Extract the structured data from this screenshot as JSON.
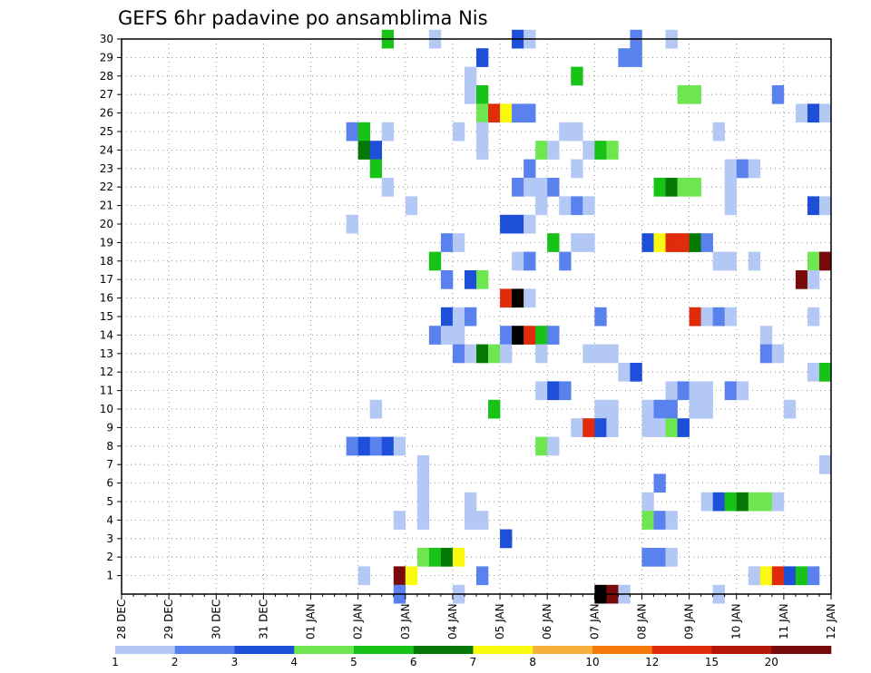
{
  "chart_data": {
    "type": "heatmap",
    "title": "GEFS 6hr padavine po ansamblima Nis",
    "xlabel": "",
    "ylabel": "",
    "x_tick_labels": [
      "28 DEC",
      "29 DEC",
      "30 DEC",
      "31 DEC",
      "01 JAN",
      "02 JAN",
      "03 JAN",
      "04 JAN",
      "05 JAN",
      "06 JAN",
      "07 JAN",
      "08 JAN",
      "09 JAN",
      "10 JAN",
      "11 JAN",
      "12 JAN"
    ],
    "y_tick_labels": [
      "1",
      "2",
      "3",
      "4",
      "5",
      "6",
      "7",
      "8",
      "9",
      "10",
      "11",
      "12",
      "13",
      "14",
      "15",
      "16",
      "17",
      "18",
      "19",
      "20",
      "21",
      "22",
      "23",
      "24",
      "25",
      "26",
      "27",
      "28",
      "29",
      "30"
    ],
    "x_unit": "6-hour step from 28 DEC 00Z",
    "y_unit": "ensemble member",
    "xlim": [
      0,
      60
    ],
    "ylim": [
      0,
      30
    ],
    "grid": true,
    "legend_placement": "bottom",
    "legend": {
      "labels": [
        "1",
        "2",
        "3",
        "4",
        "5",
        "6",
        "7",
        "8",
        "10",
        "12",
        "15",
        "20"
      ],
      "colors": [
        "#b4c8f5",
        "#5a82ee",
        "#1d4fd9",
        "#6ee650",
        "#18c318",
        "#067806",
        "#fafa10",
        "#f8b03c",
        "#f57a0a",
        "#e02c0a",
        "#b41605",
        "#780a0a"
      ]
    },
    "cells": [
      [
        22.5,
        30,
        5
      ],
      [
        26.5,
        30,
        1
      ],
      [
        33.5,
        30,
        3
      ],
      [
        34.5,
        30,
        1
      ],
      [
        43.5,
        30,
        2
      ],
      [
        46.5,
        30,
        1
      ],
      [
        30.5,
        29,
        3
      ],
      [
        42.5,
        29,
        2
      ],
      [
        43.5,
        29,
        2
      ],
      [
        29.5,
        28,
        1
      ],
      [
        38.5,
        28,
        5
      ],
      [
        29.5,
        27,
        1
      ],
      [
        30.5,
        27,
        5
      ],
      [
        47.5,
        27,
        4
      ],
      [
        48.5,
        27,
        4
      ],
      [
        55.5,
        27,
        2
      ],
      [
        30.5,
        26,
        4
      ],
      [
        31.5,
        26,
        10
      ],
      [
        32.5,
        26,
        7
      ],
      [
        33.5,
        26,
        2
      ],
      [
        34.5,
        26,
        2
      ],
      [
        57.5,
        26,
        1
      ],
      [
        58.5,
        26,
        3
      ],
      [
        59.5,
        26,
        1
      ],
      [
        19.5,
        25,
        2
      ],
      [
        20.5,
        25,
        5
      ],
      [
        22.5,
        25,
        1
      ],
      [
        28.5,
        25,
        1
      ],
      [
        30.5,
        25,
        1
      ],
      [
        37.5,
        25,
        1
      ],
      [
        38.5,
        25,
        1
      ],
      [
        50.5,
        25,
        1
      ],
      [
        20.5,
        24,
        6
      ],
      [
        21.5,
        24,
        3
      ],
      [
        30.5,
        24,
        1
      ],
      [
        35.5,
        24,
        4
      ],
      [
        36.5,
        24,
        1
      ],
      [
        39.5,
        24,
        1
      ],
      [
        40.5,
        24,
        5
      ],
      [
        41.5,
        24,
        4
      ],
      [
        21.5,
        23,
        5
      ],
      [
        34.5,
        23,
        2
      ],
      [
        38.5,
        23,
        1
      ],
      [
        51.5,
        23,
        1
      ],
      [
        52.5,
        23,
        2
      ],
      [
        53.5,
        23,
        1
      ],
      [
        22.5,
        22,
        1
      ],
      [
        33.5,
        22,
        2
      ],
      [
        34.5,
        22,
        1
      ],
      [
        35.5,
        22,
        1
      ],
      [
        36.5,
        22,
        2
      ],
      [
        45.5,
        22,
        5
      ],
      [
        46.5,
        22,
        6
      ],
      [
        47.5,
        22,
        4
      ],
      [
        48.5,
        22,
        4
      ],
      [
        51.5,
        22,
        1
      ],
      [
        24.5,
        21,
        1
      ],
      [
        35.5,
        21,
        1
      ],
      [
        37.5,
        21,
        1
      ],
      [
        38.5,
        21,
        2
      ],
      [
        39.5,
        21,
        1
      ],
      [
        51.5,
        21,
        1
      ],
      [
        58.5,
        21,
        3
      ],
      [
        59.5,
        21,
        1
      ],
      [
        19.5,
        20,
        1
      ],
      [
        32.5,
        20,
        3
      ],
      [
        33.5,
        20,
        3
      ],
      [
        34.5,
        20,
        1
      ],
      [
        27.5,
        19,
        2
      ],
      [
        28.5,
        19,
        1
      ],
      [
        36.5,
        19,
        5
      ],
      [
        38.5,
        19,
        1
      ],
      [
        39.5,
        19,
        1
      ],
      [
        44.5,
        19,
        3
      ],
      [
        45.5,
        19,
        7
      ],
      [
        46.5,
        19,
        10
      ],
      [
        47.5,
        19,
        10
      ],
      [
        48.5,
        19,
        6
      ],
      [
        49.5,
        19,
        2
      ],
      [
        26.5,
        18,
        5
      ],
      [
        33.5,
        18,
        1
      ],
      [
        34.5,
        18,
        2
      ],
      [
        37.5,
        18,
        2
      ],
      [
        50.5,
        18,
        1
      ],
      [
        51.5,
        18,
        1
      ],
      [
        53.5,
        18,
        1
      ],
      [
        58.5,
        18,
        4
      ],
      [
        59.5,
        18,
        12
      ],
      [
        27.5,
        17,
        2
      ],
      [
        29.5,
        17,
        3
      ],
      [
        30.5,
        17,
        4
      ],
      [
        57.5,
        17,
        12
      ],
      [
        58.5,
        17,
        1
      ],
      [
        32.5,
        16,
        10
      ],
      [
        33.5,
        16,
        15
      ],
      [
        34.5,
        16,
        1
      ],
      [
        27.5,
        15,
        3
      ],
      [
        28.5,
        15,
        1
      ],
      [
        29.5,
        15,
        2
      ],
      [
        40.5,
        15,
        2
      ],
      [
        48.5,
        15,
        10
      ],
      [
        49.5,
        15,
        1
      ],
      [
        50.5,
        15,
        2
      ],
      [
        51.5,
        15,
        1
      ],
      [
        58.5,
        15,
        1
      ],
      [
        26.5,
        14,
        2
      ],
      [
        27.5,
        14,
        1
      ],
      [
        28.5,
        14,
        1
      ],
      [
        32.5,
        14,
        2
      ],
      [
        33.5,
        14,
        20
      ],
      [
        34.5,
        14,
        10
      ],
      [
        35.5,
        14,
        5
      ],
      [
        36.5,
        14,
        2
      ],
      [
        54.5,
        14,
        1
      ],
      [
        28.5,
        13,
        2
      ],
      [
        29.5,
        13,
        1
      ],
      [
        30.5,
        13,
        6
      ],
      [
        31.5,
        13,
        4
      ],
      [
        32.5,
        13,
        1
      ],
      [
        35.5,
        13,
        1
      ],
      [
        39.5,
        13,
        1
      ],
      [
        40.5,
        13,
        1
      ],
      [
        41.5,
        13,
        1
      ],
      [
        54.5,
        13,
        2
      ],
      [
        55.5,
        13,
        1
      ],
      [
        42.5,
        12,
        1
      ],
      [
        43.5,
        12,
        3
      ],
      [
        58.5,
        12,
        1
      ],
      [
        59.5,
        12,
        5
      ],
      [
        35.5,
        11,
        1
      ],
      [
        36.5,
        11,
        3
      ],
      [
        37.5,
        11,
        2
      ],
      [
        46.5,
        11,
        1
      ],
      [
        47.5,
        11,
        2
      ],
      [
        48.5,
        11,
        1
      ],
      [
        49.5,
        11,
        1
      ],
      [
        51.5,
        11,
        2
      ],
      [
        52.5,
        11,
        1
      ],
      [
        21.5,
        10,
        1
      ],
      [
        31.5,
        10,
        5
      ],
      [
        40.5,
        10,
        1
      ],
      [
        41.5,
        10,
        1
      ],
      [
        44.5,
        10,
        1
      ],
      [
        45.5,
        10,
        2
      ],
      [
        46.5,
        10,
        2
      ],
      [
        48.5,
        10,
        1
      ],
      [
        49.5,
        10,
        1
      ],
      [
        56.5,
        10,
        1
      ],
      [
        38.5,
        9,
        1
      ],
      [
        39.5,
        9,
        10
      ],
      [
        40.5,
        9,
        3
      ],
      [
        41.5,
        9,
        1
      ],
      [
        44.5,
        9,
        1
      ],
      [
        45.5,
        9,
        1
      ],
      [
        46.5,
        9,
        4
      ],
      [
        47.5,
        9,
        3
      ],
      [
        19.5,
        8,
        2
      ],
      [
        20.5,
        8,
        3
      ],
      [
        21.5,
        8,
        2
      ],
      [
        22.5,
        8,
        3
      ],
      [
        23.5,
        8,
        1
      ],
      [
        35.5,
        8,
        4
      ],
      [
        36.5,
        8,
        1
      ],
      [
        25.5,
        7,
        1
      ],
      [
        59.5,
        7,
        1
      ],
      [
        25.5,
        6,
        1
      ],
      [
        45.5,
        6,
        2
      ],
      [
        25.5,
        5,
        1
      ],
      [
        29.5,
        5,
        1
      ],
      [
        44.5,
        5,
        1
      ],
      [
        49.5,
        5,
        1
      ],
      [
        50.5,
        5,
        3
      ],
      [
        51.5,
        5,
        5
      ],
      [
        52.5,
        5,
        6
      ],
      [
        53.5,
        5,
        4
      ],
      [
        54.5,
        5,
        4
      ],
      [
        55.5,
        5,
        1
      ],
      [
        23.5,
        4,
        1
      ],
      [
        25.5,
        4,
        1
      ],
      [
        29.5,
        4,
        1
      ],
      [
        30.5,
        4,
        1
      ],
      [
        44.5,
        4,
        4
      ],
      [
        45.5,
        4,
        2
      ],
      [
        46.5,
        4,
        1
      ],
      [
        32.5,
        3,
        3
      ],
      [
        25.5,
        2,
        4
      ],
      [
        26.5,
        2,
        5
      ],
      [
        27.5,
        2,
        6
      ],
      [
        28.5,
        2,
        7
      ],
      [
        44.5,
        2,
        2
      ],
      [
        45.5,
        2,
        2
      ],
      [
        46.5,
        2,
        1
      ],
      [
        20.5,
        1,
        1
      ],
      [
        23.5,
        1,
        12
      ],
      [
        24.5,
        1,
        7
      ],
      [
        30.5,
        1,
        2
      ],
      [
        53.5,
        1,
        1
      ],
      [
        54.5,
        1,
        7
      ],
      [
        55.5,
        1,
        10
      ],
      [
        56.5,
        1,
        3
      ],
      [
        57.5,
        1,
        5
      ],
      [
        58.5,
        1,
        2
      ],
      [
        23.5,
        0,
        2
      ],
      [
        28.5,
        0,
        1
      ],
      [
        40.5,
        0,
        15
      ],
      [
        41.5,
        0,
        12
      ],
      [
        42.5,
        0,
        1
      ],
      [
        50.5,
        0,
        1
      ]
    ]
  }
}
